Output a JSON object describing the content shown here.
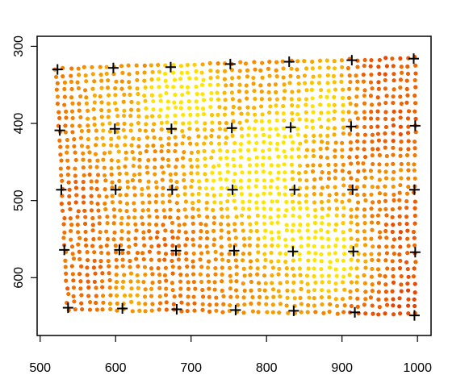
{
  "chart_data": {
    "type": "scatter",
    "title": "",
    "xlabel": "",
    "ylabel": "",
    "xlim": [
      496,
      1018
    ],
    "ylim": [
      675,
      287
    ],
    "x_ticks": [
      500,
      600,
      700,
      800,
      900,
      1000
    ],
    "x_tick_labels": [
      "500",
      "600",
      "700",
      "800",
      "900",
      "1000"
    ],
    "y_ticks": [
      300,
      400,
      500,
      600
    ],
    "y_tick_labels": [
      "300",
      "400",
      "500",
      "600"
    ],
    "y_axis_reversed": true,
    "grid": false,
    "legend": "none",
    "field_series": {
      "name": "",
      "marker": "filled-circle",
      "color_scale": "heat (red to yellow)",
      "colors": [
        "#e63c00",
        "#f06400",
        "#f58c00",
        "#fbb400",
        "#ffe600"
      ],
      "corners": {
        "top_left": [
          521,
          329
        ],
        "top_right": [
          997,
          315
        ],
        "bottom_left": [
          537,
          641
        ],
        "bottom_right": [
          996,
          647
        ]
      },
      "grid_columns": 50,
      "grid_rows": 35
    },
    "hot_spots": [
      {
        "x": 705,
        "y": 360,
        "level": 0.95,
        "spread": 35
      },
      {
        "x": 665,
        "y": 360,
        "level": 0.75,
        "spread": 30
      },
      {
        "x": 800,
        "y": 435,
        "level": 1.0,
        "spread": 45
      },
      {
        "x": 760,
        "y": 480,
        "level": 0.9,
        "spread": 40
      },
      {
        "x": 870,
        "y": 360,
        "level": 0.85,
        "spread": 40
      },
      {
        "x": 840,
        "y": 540,
        "level": 0.85,
        "spread": 40
      },
      {
        "x": 905,
        "y": 560,
        "level": 0.7,
        "spread": 35
      },
      {
        "x": 880,
        "y": 600,
        "level": 0.55,
        "spread": 30
      },
      {
        "x": 960,
        "y": 470,
        "level": 0.5,
        "spread": 30
      },
      {
        "x": 580,
        "y": 380,
        "level": 0.45,
        "spread": 45
      },
      {
        "x": 640,
        "y": 470,
        "level": 0.4,
        "spread": 40
      },
      {
        "x": 780,
        "y": 620,
        "level": 0.45,
        "spread": 35
      },
      {
        "x": 620,
        "y": 620,
        "level": 0.35,
        "spread": 30
      }
    ],
    "control_points": {
      "name": "",
      "marker": "+",
      "color": "#000000",
      "points": [
        {
          "x": 523,
          "y": 330
        },
        {
          "x": 597,
          "y": 328
        },
        {
          "x": 673,
          "y": 327
        },
        {
          "x": 752,
          "y": 323
        },
        {
          "x": 830,
          "y": 320
        },
        {
          "x": 913,
          "y": 318
        },
        {
          "x": 995,
          "y": 316
        },
        {
          "x": 526,
          "y": 409
        },
        {
          "x": 599,
          "y": 407
        },
        {
          "x": 674,
          "y": 407
        },
        {
          "x": 754,
          "y": 406
        },
        {
          "x": 832,
          "y": 405
        },
        {
          "x": 912,
          "y": 404
        },
        {
          "x": 997,
          "y": 403
        },
        {
          "x": 528,
          "y": 486
        },
        {
          "x": 600,
          "y": 486
        },
        {
          "x": 675,
          "y": 486
        },
        {
          "x": 755,
          "y": 486
        },
        {
          "x": 837,
          "y": 486
        },
        {
          "x": 914,
          "y": 486
        },
        {
          "x": 996,
          "y": 486
        }
      ]
    },
    "control_points_lower": [
      {
        "x": 532,
        "y": 564
      },
      {
        "x": 605,
        "y": 564
      },
      {
        "x": 680,
        "y": 565
      },
      {
        "x": 757,
        "y": 565
      },
      {
        "x": 835,
        "y": 566
      },
      {
        "x": 915,
        "y": 566
      },
      {
        "x": 997,
        "y": 567
      },
      {
        "x": 537,
        "y": 639
      },
      {
        "x": 609,
        "y": 640
      },
      {
        "x": 681,
        "y": 641
      },
      {
        "x": 759,
        "y": 642
      },
      {
        "x": 836,
        "y": 643
      },
      {
        "x": 917,
        "y": 645
      },
      {
        "x": 996,
        "y": 649
      }
    ]
  }
}
